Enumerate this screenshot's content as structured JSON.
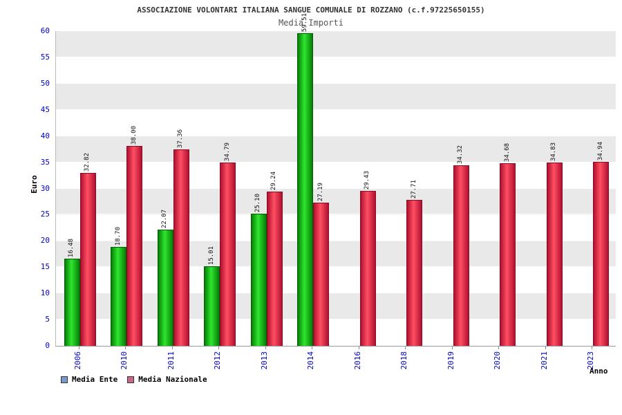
{
  "title": "ASSOCIAZIONE VOLONTARI ITALIANA SANGUE COMUNALE DI ROZZANO (c.f.97225650155)",
  "subtitle": "Media Importi",
  "chart_data": {
    "type": "bar",
    "title": "ASSOCIAZIONE VOLONTARI ITALIANA SANGUE COMUNALE DI ROZZANO (c.f.97225650155)",
    "subtitle": "Media Importi",
    "xlabel": "Anno",
    "ylabel": "Euro",
    "ylim": [
      0,
      60
    ],
    "ytick_step": 5,
    "grid": true,
    "legend_position": "bottom",
    "categories": [
      "2006",
      "2010",
      "2011",
      "2012",
      "2013",
      "2014",
      "2016",
      "2018",
      "2019",
      "2020",
      "2021",
      "2023"
    ],
    "series": [
      {
        "name": "Media Ente",
        "bar_color": "#2fe62f",
        "values": [
          16.48,
          18.7,
          22.07,
          15.01,
          25.1,
          59.51,
          null,
          null,
          null,
          null,
          null,
          null
        ],
        "labels": [
          "16.48",
          "18.70",
          "22.07",
          "15.01",
          "25.10",
          "59.51",
          null,
          null,
          null,
          null,
          null,
          null
        ]
      },
      {
        "name": "Media Nazionale",
        "bar_color": "#ff4f63",
        "values": [
          32.82,
          38.0,
          37.36,
          34.79,
          29.24,
          27.19,
          29.43,
          27.71,
          34.32,
          34.68,
          34.83,
          34.94
        ],
        "labels": [
          "32.82",
          "38.00",
          "37.36",
          "34.79",
          "29.24",
          "27.19",
          "29.43",
          "27.71",
          "34.32",
          "34.68",
          "34.83",
          "34.94"
        ]
      }
    ]
  },
  "legend": {
    "items": [
      {
        "label": "Media Ente",
        "color": "#7799cc"
      },
      {
        "label": "Media Nazionale",
        "color": "#cc6688"
      }
    ]
  }
}
